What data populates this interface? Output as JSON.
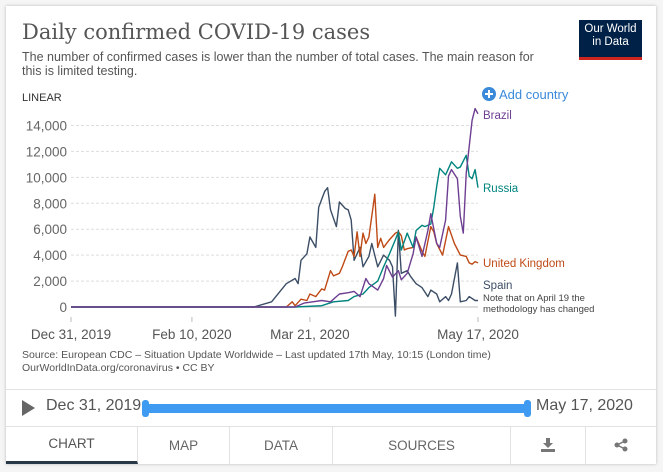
{
  "header": {
    "title": "Daily confirmed COVID-19 cases",
    "subtitle": "The number of confirmed cases is lower than the number of total cases. The main reason for this is limited testing.",
    "logo_line1": "Our World",
    "logo_line2": "in Data"
  },
  "controls": {
    "scale_toggle": "LINEAR",
    "add_country": "Add country"
  },
  "chart_data": {
    "type": "line",
    "title": "Daily confirmed COVID-19 cases",
    "xlabel": "",
    "ylabel": "",
    "x_unit": "days since Dec 31, 2019",
    "xlim": [
      0,
      138
    ],
    "ylim": [
      0,
      14000
    ],
    "grid": true,
    "yticks": [
      0,
      2000,
      4000,
      6000,
      8000,
      10000,
      12000,
      14000
    ],
    "ytick_labels": [
      "0",
      "2,000",
      "4,000",
      "6,000",
      "8,000",
      "10,000",
      "12,000",
      "14,000"
    ],
    "xticks": [
      0,
      41,
      81,
      138
    ],
    "xtick_labels": [
      "Dec 31, 2019",
      "Feb 10, 2020",
      "Mar 21, 2020",
      "May 17, 2020"
    ],
    "legend_placement": "right, inline labels",
    "annotation": [
      "Note that on April 19 the",
      "methodology has changed"
    ],
    "series": [
      {
        "name": "Spain",
        "color": "#3c4e66",
        "points": [
          [
            0,
            0
          ],
          [
            62,
            0
          ],
          [
            68,
            400
          ],
          [
            73,
            1800
          ],
          [
            76,
            2200
          ],
          [
            77,
            1800
          ],
          [
            78,
            3600
          ],
          [
            80,
            4100
          ],
          [
            81,
            5400
          ],
          [
            83,
            4600
          ],
          [
            84,
            7700
          ],
          [
            86,
            8900
          ],
          [
            87,
            9200
          ],
          [
            88,
            7500
          ],
          [
            90,
            6200
          ],
          [
            91,
            8100
          ],
          [
            93,
            7600
          ],
          [
            94,
            7500
          ],
          [
            95,
            6700
          ],
          [
            96,
            3600
          ],
          [
            98,
            4600
          ],
          [
            99,
            3100
          ],
          [
            101,
            3900
          ],
          [
            102,
            4900
          ],
          [
            104,
            3100
          ],
          [
            106,
            4000
          ],
          [
            108,
            3600
          ],
          [
            109,
            3100
          ],
          [
            110,
            -700
          ],
          [
            111,
            5900
          ],
          [
            112,
            2600
          ],
          [
            114,
            2800
          ],
          [
            115,
            2400
          ],
          [
            117,
            1800
          ],
          [
            119,
            1500
          ],
          [
            121,
            800
          ],
          [
            122,
            1300
          ],
          [
            124,
            1000
          ],
          [
            125,
            400
          ],
          [
            127,
            800
          ],
          [
            128,
            500
          ],
          [
            129,
            1000
          ],
          [
            131,
            3400
          ],
          [
            132,
            400
          ],
          [
            134,
            500
          ],
          [
            135,
            800
          ],
          [
            137,
            500
          ],
          [
            138,
            500
          ]
        ]
      },
      {
        "name": "United Kingdom",
        "color": "#be4a16",
        "points": [
          [
            0,
            0
          ],
          [
            73,
            0
          ],
          [
            75,
            400
          ],
          [
            76,
            100
          ],
          [
            78,
            600
          ],
          [
            80,
            500
          ],
          [
            81,
            1000
          ],
          [
            83,
            800
          ],
          [
            85,
            1400
          ],
          [
            86,
            1300
          ],
          [
            88,
            2800
          ],
          [
            89,
            2400
          ],
          [
            91,
            2600
          ],
          [
            92,
            3100
          ],
          [
            94,
            4300
          ],
          [
            95,
            4400
          ],
          [
            96,
            3900
          ],
          [
            97,
            5800
          ],
          [
            98,
            3900
          ],
          [
            99,
            5700
          ],
          [
            100,
            4900
          ],
          [
            101,
            5400
          ],
          [
            103,
            8700
          ],
          [
            104,
            4600
          ],
          [
            105,
            5300
          ],
          [
            106,
            4600
          ],
          [
            108,
            5200
          ],
          [
            110,
            5700
          ],
          [
            111,
            5800
          ],
          [
            112,
            5500
          ],
          [
            113,
            4400
          ],
          [
            114,
            4500
          ],
          [
            116,
            4600
          ],
          [
            117,
            5400
          ],
          [
            119,
            4300
          ],
          [
            120,
            3900
          ],
          [
            122,
            6200
          ],
          [
            123,
            5800
          ],
          [
            124,
            4900
          ],
          [
            126,
            4000
          ],
          [
            128,
            6200
          ],
          [
            130,
            4900
          ],
          [
            132,
            4000
          ],
          [
            134,
            3900
          ],
          [
            135,
            3400
          ],
          [
            136,
            3300
          ],
          [
            137,
            3500
          ],
          [
            138,
            3400
          ]
        ]
      },
      {
        "name": "Russia",
        "color": "#00847e",
        "points": [
          [
            0,
            0
          ],
          [
            76,
            0
          ],
          [
            85,
            100
          ],
          [
            89,
            400
          ],
          [
            94,
            500
          ],
          [
            96,
            800
          ],
          [
            99,
            1000
          ],
          [
            101,
            1500
          ],
          [
            104,
            2000
          ],
          [
            106,
            3100
          ],
          [
            108,
            4100
          ],
          [
            110,
            5200
          ],
          [
            111,
            5800
          ],
          [
            112,
            4400
          ],
          [
            114,
            5700
          ],
          [
            116,
            4600
          ],
          [
            117,
            5900
          ],
          [
            119,
            6300
          ],
          [
            120,
            6200
          ],
          [
            122,
            6400
          ],
          [
            123,
            7700
          ],
          [
            124,
            9300
          ],
          [
            125,
            10700
          ],
          [
            127,
            10200
          ],
          [
            129,
            11200
          ],
          [
            131,
            10700
          ],
          [
            132,
            10800
          ],
          [
            134,
            11700
          ],
          [
            135,
            10100
          ],
          [
            136,
            9900
          ],
          [
            137,
            10600
          ],
          [
            138,
            9200
          ]
        ]
      },
      {
        "name": "Brazil",
        "color": "#6d3e91",
        "points": [
          [
            0,
            0
          ],
          [
            76,
            0
          ],
          [
            79,
            300
          ],
          [
            82,
            400
          ],
          [
            85,
            500
          ],
          [
            88,
            400
          ],
          [
            91,
            1000
          ],
          [
            94,
            1100
          ],
          [
            96,
            1200
          ],
          [
            98,
            800
          ],
          [
            100,
            2200
          ],
          [
            101,
            1800
          ],
          [
            104,
            1300
          ],
          [
            106,
            2200
          ],
          [
            107,
            3200
          ],
          [
            109,
            2300
          ],
          [
            111,
            2800
          ],
          [
            112,
            2100
          ],
          [
            114,
            2600
          ],
          [
            116,
            4100
          ],
          [
            117,
            5400
          ],
          [
            119,
            3900
          ],
          [
            121,
            5900
          ],
          [
            122,
            7200
          ],
          [
            124,
            4900
          ],
          [
            125,
            4600
          ],
          [
            127,
            6700
          ],
          [
            128,
            10100
          ],
          [
            129,
            10600
          ],
          [
            131,
            9900
          ],
          [
            132,
            7000
          ],
          [
            133,
            5700
          ],
          [
            134,
            10300
          ],
          [
            136,
            14400
          ],
          [
            137,
            15300
          ],
          [
            138,
            14900
          ]
        ]
      }
    ]
  },
  "footer": {
    "source": "Source: European CDC – Situation Update Worldwide – Last updated 17th May, 10:15 (London time)",
    "url": "OurWorldInData.org/coronavirus • CC BY"
  },
  "timeline": {
    "start": "Dec 31, 2019",
    "end": "May 17, 2020"
  },
  "tabs": [
    {
      "label": "CHART"
    },
    {
      "label": "MAP"
    },
    {
      "label": "DATA"
    },
    {
      "label": "SOURCES"
    }
  ]
}
